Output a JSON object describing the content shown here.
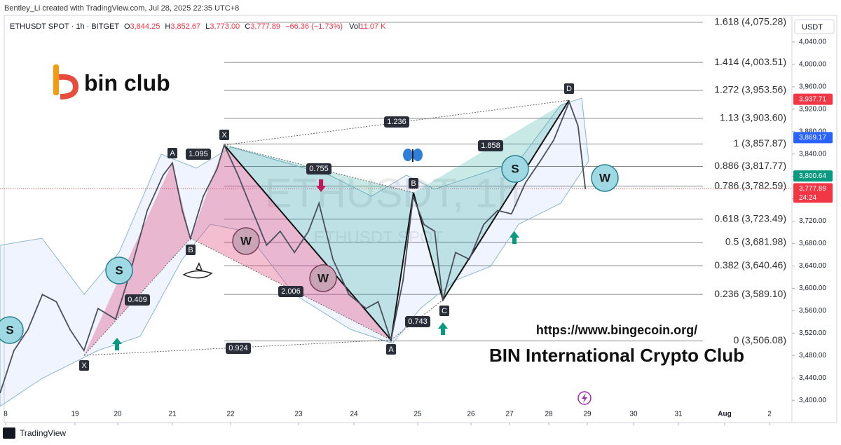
{
  "header": {
    "credit": "Bentley_Li created with TradingView.com, Jul 28, 2025 22:35 UTC+8"
  },
  "legend": {
    "symbol": "ETHUSDT SPOT · 1h · BITGET",
    "o_label": "O",
    "o": "3,844.25",
    "h_label": "H",
    "h": "3,852.67",
    "l_label": "L",
    "l": "3,773.00",
    "c_label": "C",
    "c": "3,777.89",
    "change": "−66.36 (−1.73%)",
    "vol_label": "Vol",
    "vol": "11.07 K"
  },
  "currency": "USDT",
  "chart_data": {
    "type": "line",
    "x": [
      17.92,
      18.12,
      18.32,
      18.53,
      18.73,
      18.93,
      19.21,
      19.54,
      19.95,
      20.22,
      20.54,
      20.83,
      21.0,
      21.17,
      21.31,
      21.53,
      21.77,
      21.89,
      22.11,
      22.32,
      22.53,
      22.73,
      22.94,
      23.18,
      23.37,
      23.62,
      23.91,
      24.19,
      24.38,
      24.58,
      24.77,
      24.93,
      25.12,
      25.32,
      25.47,
      25.71,
      25.97,
      26.33,
      26.69,
      27.05,
      27.41,
      27.78,
      28.13,
      28.53,
      28.76,
      28.95
    ],
    "values": [
      3413,
      3489,
      3526,
      3589,
      3576,
      3526,
      3489,
      3564,
      3545,
      3626,
      3739,
      3802,
      3824,
      3739,
      3689,
      3764,
      3814,
      3856,
      3802,
      3739,
      3677,
      3702,
      3664,
      3702,
      3752,
      3652,
      3589,
      3564,
      3576,
      3507,
      3614,
      3764,
      3714,
      3702,
      3579,
      3664,
      3652,
      3714,
      3739,
      3733,
      3789,
      3827,
      3865,
      3933,
      3890,
      3777
    ],
    "color": "#4a4f5c",
    "xlim": [
      17.92,
      33.5
    ],
    "xticks": [
      {
        "value": 18,
        "label": "8"
      },
      19,
      20,
      21,
      22,
      23,
      24,
      25,
      26,
      27,
      28,
      29,
      30,
      31,
      {
        "value": 32,
        "label": "Aug"
      },
      {
        "value": 33,
        "label": "2"
      }
    ],
    "ylim": [
      3364,
      4080
    ],
    "yticks": [
      {
        "value": 3400,
        "label": "3,400.00"
      },
      {
        "value": 3440,
        "label": "3,440.00"
      },
      {
        "value": 3480,
        "label": "3,480.00"
      },
      {
        "value": 3520,
        "label": "3,520.00"
      },
      {
        "value": 3560,
        "label": "3,560.00"
      },
      {
        "value": 3600,
        "label": "3,600.00"
      },
      {
        "value": 3640,
        "label": "3,640.00"
      },
      {
        "value": 3680,
        "label": "3,680.00"
      },
      {
        "value": 3720,
        "label": "3,720.00"
      },
      {
        "value": 3760,
        "label": "3,760.00"
      },
      {
        "value": 3800,
        "label": "3,800.00"
      },
      {
        "value": 3840,
        "label": "3,840.00"
      },
      {
        "value": 3880,
        "label": "3,880.00"
      },
      {
        "value": 3920,
        "label": "3,920.00"
      },
      {
        "value": 3960,
        "label": "3,960.00"
      },
      {
        "value": 4000,
        "label": "4,000.00"
      },
      {
        "value": 4040,
        "label": "4,040.00"
      }
    ],
    "price_tags": [
      {
        "value": 3937.71,
        "label": "3,937.71",
        "color": "#f23645"
      },
      {
        "value": 3869.17,
        "label": "3,869.17",
        "color": "#2962ff"
      },
      {
        "value": 3800.64,
        "label": "3,800.64",
        "color": "#089981"
      },
      {
        "value": 3777.89,
        "label": "3,777.89",
        "color": "#f23645"
      }
    ],
    "countdown": "24:24"
  },
  "annotations": {
    "fib": [
      {
        "value": 4075.28,
        "label": "1.618 (4,075.28)"
      },
      {
        "value": 4003.51,
        "label": "1.414 (4,003.51)"
      },
      {
        "value": 3953.56,
        "label": "1.272 (3,953.56)"
      },
      {
        "value": 3903.6,
        "label": "1.13 (3,903.60)"
      },
      {
        "value": 3857.87,
        "label": "1 (3,857.87)"
      },
      {
        "value": 3817.77,
        "label": "0.886 (3,817.77)"
      },
      {
        "value": 3782.59,
        "label": "0.786 (3,782.59)"
      },
      {
        "value": 3723.49,
        "label": "0.618 (3,723.49)"
      },
      {
        "value": 3681.98,
        "label": "0.5 (3,681.98)"
      },
      {
        "value": 3640.46,
        "label": "0.382 (3,640.46)"
      },
      {
        "value": 3589.1,
        "label": "0.236 (3,589.10)"
      },
      {
        "value": 3506.08,
        "label": "0 (3,506.08)"
      }
    ],
    "points": [
      "X",
      "A",
      "B",
      "X",
      "A",
      "B",
      "C",
      "D"
    ],
    "ratios": [
      "1.095",
      "0.409",
      "1.236",
      "0.755",
      "2.006",
      "0.924",
      "0.743",
      "1.858"
    ],
    "circles": [
      "S",
      "S",
      "S",
      "W",
      "W",
      "W"
    ],
    "watermark": "ETHUSDT, 1h",
    "watermark_sub": "ETHUSDT SPOT"
  },
  "brand": {
    "name": "bin club",
    "url": "https://www.bingecoin.org/",
    "club": "BIN International Crypto Club"
  },
  "footer": {
    "logo": "TradingView"
  }
}
